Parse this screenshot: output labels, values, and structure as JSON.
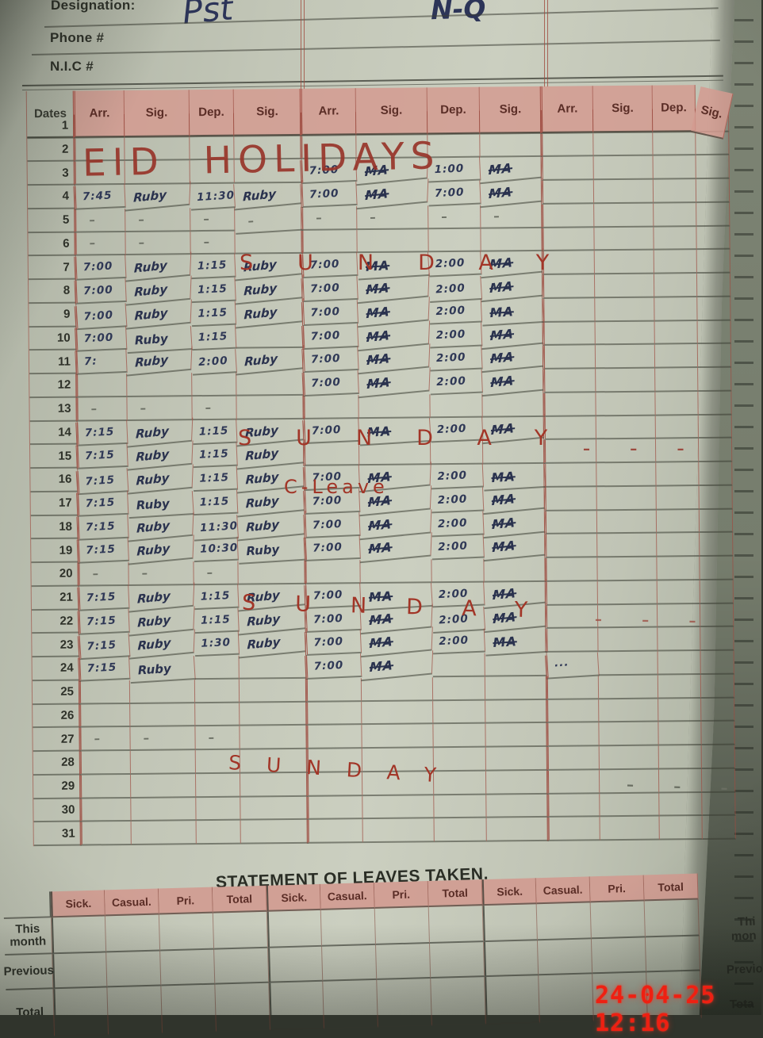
{
  "photo": {
    "timestamp": "24-04-25 12:16"
  },
  "header_fields": {
    "designation_label": "Designation:",
    "designation_value": "Pst",
    "designation_note": "N-Q",
    "phone_label": "Phone #",
    "nic_label": "N.I.C #"
  },
  "attendance": {
    "dates_header": "Dates",
    "col_headers": [
      "Arr.",
      "Sig.",
      "Dep.",
      "Sig.",
      "Arr.",
      "Sig.",
      "Dep.",
      "Sig.",
      "Arr.",
      "Sig.",
      "Dep.",
      "Sig."
    ],
    "rows": [
      {
        "d": "1"
      },
      {
        "d": "2"
      },
      {
        "d": "3",
        "c": [
          "",
          "",
          "",
          "",
          "7:00",
          "MA",
          "1:00",
          "MA"
        ]
      },
      {
        "d": "4",
        "c": [
          "7:45",
          "Ruby",
          "11:30",
          "Ruby",
          "7:00",
          "MA",
          "7:00",
          "MA"
        ]
      },
      {
        "d": "5",
        "c": [
          "–",
          "–",
          "–",
          "–",
          "–",
          "–",
          "–",
          "–"
        ]
      },
      {
        "d": "6",
        "c": [
          "–",
          "–",
          "–"
        ]
      },
      {
        "d": "7",
        "c": [
          "7:00",
          "Ruby",
          "1:15",
          "Ruby",
          "7:00",
          "MA",
          "2:00",
          "MA"
        ]
      },
      {
        "d": "8",
        "c": [
          "7:00",
          "Ruby",
          "1:15",
          "Ruby",
          "7:00",
          "MA",
          "2:00",
          "MA"
        ]
      },
      {
        "d": "9",
        "c": [
          "7:00",
          "Ruby",
          "1:15",
          "Ruby",
          "7:00",
          "MA",
          "2:00",
          "MA"
        ]
      },
      {
        "d": "10",
        "c": [
          "7:00",
          "Ruby",
          "1:15",
          "",
          "7:00",
          "MA",
          "2:00",
          "MA"
        ]
      },
      {
        "d": "11",
        "c": [
          "7:",
          "Ruby",
          "2:00",
          "Ruby",
          "7:00",
          "MA",
          "2:00",
          "MA"
        ]
      },
      {
        "d": "12",
        "c": [
          "",
          "",
          "",
          "",
          "7:00",
          "MA",
          "2:00",
          "MA"
        ]
      },
      {
        "d": "13",
        "c": [
          "–",
          "–",
          "–"
        ]
      },
      {
        "d": "14",
        "c": [
          "7:15",
          "Ruby",
          "1:15",
          "Ruby",
          "7:00",
          "MA",
          "2:00",
          "MA"
        ]
      },
      {
        "d": "15",
        "c": [
          "7:15",
          "Ruby",
          "1:15",
          "Ruby"
        ]
      },
      {
        "d": "16",
        "c": [
          "7:15",
          "Ruby",
          "1:15",
          "Ruby",
          "7:00",
          "MA",
          "2:00",
          "MA"
        ]
      },
      {
        "d": "17",
        "c": [
          "7:15",
          "Ruby",
          "1:15",
          "Ruby",
          "7:00",
          "MA",
          "2:00",
          "MA"
        ]
      },
      {
        "d": "18",
        "c": [
          "7:15",
          "Ruby",
          "11:30",
          "Ruby",
          "7:00",
          "MA",
          "2:00",
          "MA"
        ]
      },
      {
        "d": "19",
        "c": [
          "7:15",
          "Ruby",
          "10:30",
          "Ruby",
          "7:00",
          "MA",
          "2:00",
          "MA"
        ]
      },
      {
        "d": "20",
        "c": [
          "–",
          "–",
          "–"
        ]
      },
      {
        "d": "21",
        "c": [
          "7:15",
          "Ruby",
          "1:15",
          "Ruby",
          "7:00",
          "MA",
          "2:00",
          "MA"
        ]
      },
      {
        "d": "22",
        "c": [
          "7:15",
          "Ruby",
          "1:15",
          "Ruby",
          "7:00",
          "MA",
          "2:00",
          "MA"
        ]
      },
      {
        "d": "23",
        "c": [
          "7:15",
          "Ruby",
          "1:30",
          "Ruby",
          "7:00",
          "MA",
          "2:00",
          "MA"
        ]
      },
      {
        "d": "24",
        "c": [
          "7:15",
          "Ruby",
          "",
          "",
          "7:00",
          "MA",
          "",
          "",
          "···"
        ]
      },
      {
        "d": "25"
      },
      {
        "d": "26"
      },
      {
        "d": "27",
        "c": [
          "–",
          "–",
          "–"
        ]
      },
      {
        "d": "28"
      },
      {
        "d": "29"
      },
      {
        "d": "30"
      },
      {
        "d": "31"
      }
    ]
  },
  "annotations": {
    "eid_holidays": "EID HOLIDAYS",
    "sunday": "SUNDAY",
    "c_leave": "C-Leave",
    "edge_dashes": "– – –"
  },
  "leaves": {
    "title": "STATEMENT OF LEAVES TAKEN.",
    "col_headers": [
      "Sick.",
      "Casual.",
      "Pri.",
      "Total"
    ],
    "row_labels": [
      "This month",
      "Previous",
      "Total"
    ]
  },
  "next_page": {
    "fragments": [
      "Thi",
      "mon",
      "Previo",
      "Tota"
    ]
  }
}
